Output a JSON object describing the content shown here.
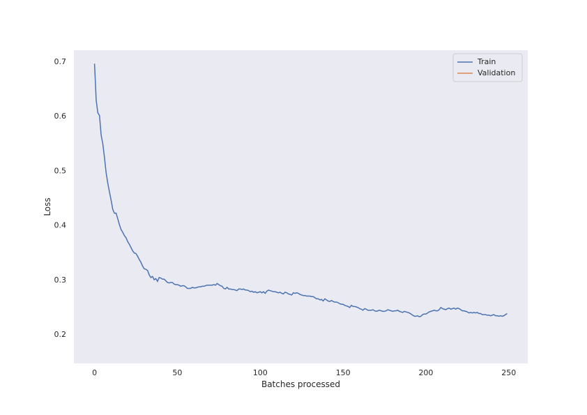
{
  "chart_data": {
    "type": "line",
    "xlabel": "Batches processed",
    "ylabel": "Loss",
    "xlim": [
      -12.45,
      261.45
    ],
    "ylim": [
      0.1476,
      0.7217
    ],
    "xticks": [
      0,
      50,
      100,
      150,
      200,
      250
    ],
    "yticks": [
      0.2,
      0.3,
      0.4,
      0.5,
      0.6,
      0.7
    ],
    "grid": false,
    "legend": "upper right",
    "series": [
      {
        "name": "Train",
        "color": "#4c72b0",
        "x": [
          0,
          1,
          2,
          3,
          4,
          5,
          6,
          7,
          8,
          9,
          10,
          11,
          12,
          13,
          14,
          15,
          16,
          17,
          18,
          19,
          20,
          21,
          22,
          23,
          24,
          25,
          26,
          27,
          28,
          29,
          30,
          31,
          32,
          33,
          34,
          35,
          36,
          37,
          38,
          39,
          40,
          41,
          42,
          43,
          44,
          45,
          46,
          47,
          48,
          49,
          50,
          51,
          52,
          53,
          54,
          55,
          56,
          57,
          58,
          59,
          60,
          61,
          62,
          63,
          64,
          65,
          66,
          67,
          68,
          69,
          70,
          71,
          72,
          73,
          74,
          75,
          76,
          77,
          78,
          79,
          80,
          81,
          82,
          83,
          84,
          85,
          86,
          87,
          88,
          89,
          90,
          91,
          92,
          93,
          94,
          95,
          96,
          97,
          98,
          99,
          100,
          101,
          102,
          103,
          104,
          105,
          106,
          107,
          108,
          109,
          110,
          111,
          112,
          113,
          114,
          115,
          116,
          117,
          118,
          119,
          120,
          121,
          122,
          123,
          124,
          125,
          126,
          127,
          128,
          129,
          130,
          131,
          132,
          133,
          134,
          135,
          136,
          137,
          138,
          139,
          140,
          141,
          142,
          143,
          144,
          145,
          146,
          147,
          148,
          149,
          150,
          151,
          152,
          153,
          154,
          155,
          156,
          157,
          158,
          159,
          160,
          161,
          162,
          163,
          164,
          165,
          166,
          167,
          168,
          169,
          170,
          171,
          172,
          173,
          174,
          175,
          176,
          177,
          178,
          179,
          180,
          181,
          182,
          183,
          184,
          185,
          186,
          187,
          188,
          189,
          190,
          191,
          192,
          193,
          194,
          195,
          196,
          197,
          198,
          199,
          200,
          201,
          202,
          203,
          204,
          205,
          206,
          207,
          208,
          209,
          210,
          211,
          212,
          213,
          214,
          215,
          216,
          217,
          218,
          219,
          220,
          221,
          222,
          223,
          224,
          225,
          226,
          227,
          228,
          229,
          230,
          231,
          232,
          233,
          234,
          235,
          236,
          237,
          238,
          239,
          240,
          241,
          242,
          243,
          244,
          245,
          246,
          247,
          248,
          249
        ],
        "values": [
          0.697,
          0.63,
          0.607,
          0.602,
          0.566,
          0.55,
          0.525,
          0.497,
          0.478,
          0.462,
          0.447,
          0.43,
          0.423,
          0.423,
          0.413,
          0.402,
          0.393,
          0.388,
          0.382,
          0.378,
          0.371,
          0.366,
          0.36,
          0.354,
          0.35,
          0.349,
          0.344,
          0.338,
          0.333,
          0.326,
          0.321,
          0.32,
          0.318,
          0.31,
          0.305,
          0.307,
          0.301,
          0.303,
          0.298,
          0.305,
          0.304,
          0.302,
          0.302,
          0.299,
          0.296,
          0.295,
          0.296,
          0.296,
          0.293,
          0.292,
          0.292,
          0.291,
          0.289,
          0.29,
          0.29,
          0.288,
          0.285,
          0.285,
          0.285,
          0.287,
          0.286,
          0.286,
          0.287,
          0.288,
          0.288,
          0.289,
          0.289,
          0.29,
          0.291,
          0.291,
          0.291,
          0.291,
          0.292,
          0.291,
          0.294,
          0.292,
          0.29,
          0.289,
          0.285,
          0.284,
          0.287,
          0.284,
          0.284,
          0.283,
          0.283,
          0.282,
          0.281,
          0.284,
          0.284,
          0.283,
          0.284,
          0.282,
          0.282,
          0.281,
          0.279,
          0.28,
          0.278,
          0.279,
          0.277,
          0.278,
          0.279,
          0.277,
          0.279,
          0.276,
          0.28,
          0.282,
          0.281,
          0.28,
          0.279,
          0.279,
          0.278,
          0.277,
          0.278,
          0.276,
          0.275,
          0.278,
          0.277,
          0.275,
          0.274,
          0.273,
          0.277,
          0.276,
          0.277,
          0.276,
          0.274,
          0.273,
          0.272,
          0.272,
          0.271,
          0.271,
          0.271,
          0.27,
          0.27,
          0.268,
          0.266,
          0.266,
          0.264,
          0.265,
          0.262,
          0.266,
          0.264,
          0.262,
          0.261,
          0.263,
          0.261,
          0.26,
          0.26,
          0.259,
          0.257,
          0.256,
          0.256,
          0.254,
          0.253,
          0.252,
          0.25,
          0.254,
          0.252,
          0.252,
          0.251,
          0.25,
          0.248,
          0.247,
          0.245,
          0.248,
          0.247,
          0.245,
          0.245,
          0.245,
          0.246,
          0.244,
          0.243,
          0.244,
          0.245,
          0.244,
          0.243,
          0.243,
          0.244,
          0.246,
          0.245,
          0.244,
          0.243,
          0.244,
          0.244,
          0.245,
          0.243,
          0.242,
          0.241,
          0.243,
          0.242,
          0.241,
          0.24,
          0.238,
          0.236,
          0.234,
          0.234,
          0.235,
          0.233,
          0.234,
          0.237,
          0.238,
          0.238,
          0.24,
          0.242,
          0.243,
          0.244,
          0.245,
          0.244,
          0.244,
          0.246,
          0.25,
          0.248,
          0.247,
          0.246,
          0.248,
          0.249,
          0.247,
          0.248,
          0.249,
          0.247,
          0.249,
          0.248,
          0.246,
          0.244,
          0.244,
          0.243,
          0.242,
          0.24,
          0.241,
          0.24,
          0.241,
          0.24,
          0.241,
          0.239,
          0.239,
          0.237,
          0.237,
          0.237,
          0.236,
          0.236,
          0.235,
          0.236,
          0.237,
          0.235,
          0.235,
          0.234,
          0.235,
          0.234,
          0.235,
          0.237,
          0.239
        ]
      },
      {
        "name": "Validation",
        "color": "#dd8452",
        "x": [],
        "values": []
      }
    ]
  }
}
